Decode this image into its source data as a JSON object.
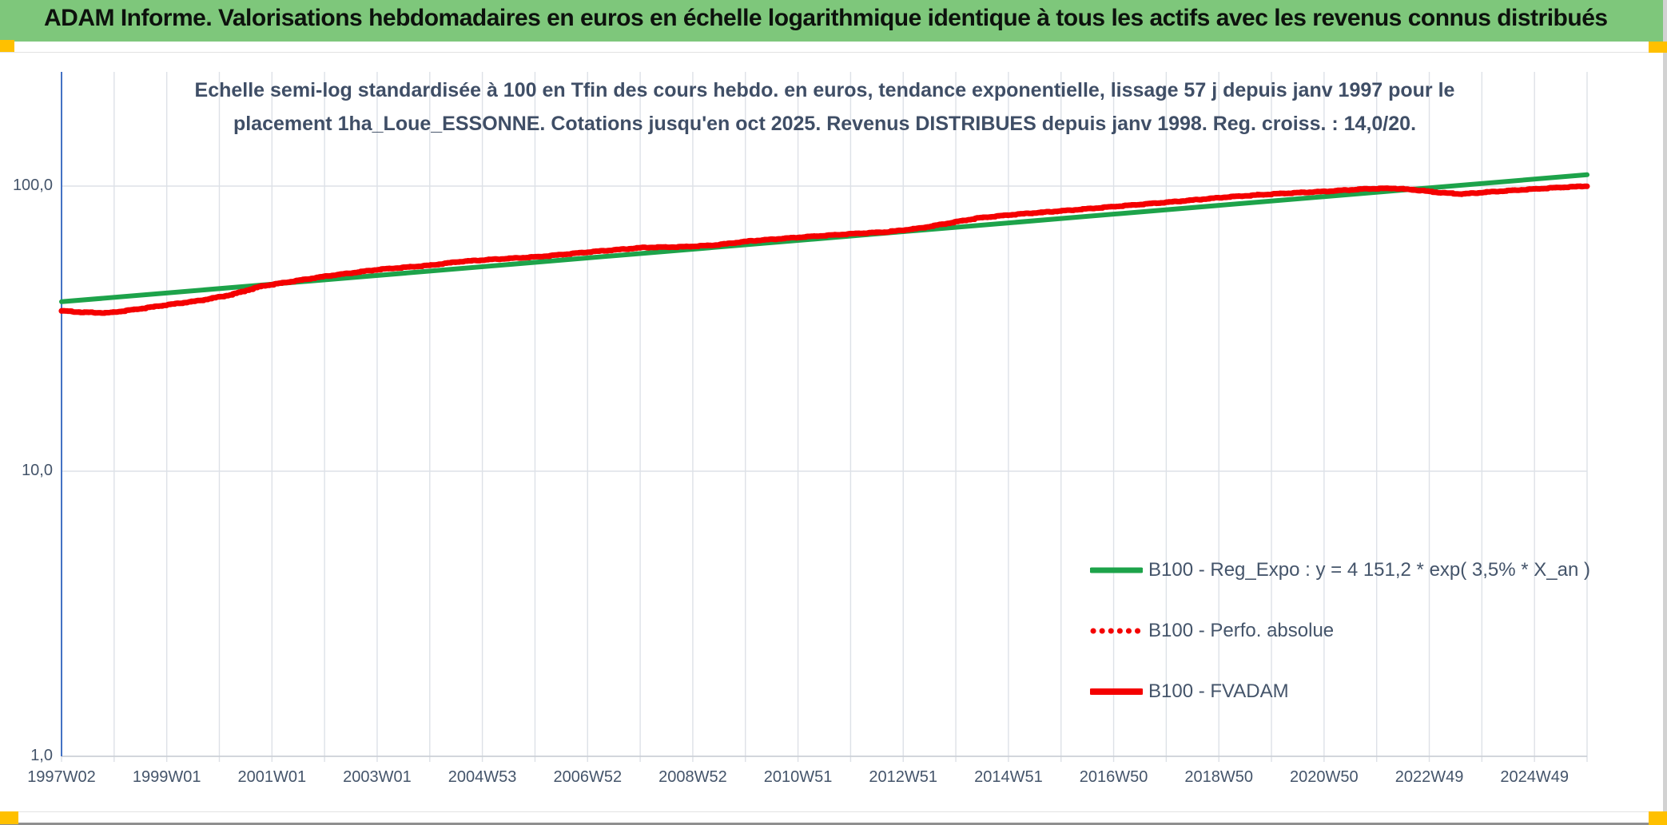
{
  "header": {
    "title": "ADAM Informe. Valorisations hebdomadaires en euros en échelle logarithmique identique à tous les actifs avec les revenus connus distribués",
    "bar_color": "#7EC77B",
    "corner_color": "#FFC000"
  },
  "chart": {
    "title_line1": "Echelle semi-log standardisée à 100 en Tfin des cours hebdo. en euros, tendance exponentielle, lissage 57 j depuis janv 1997 pour le",
    "title_line2": "placement 1ha_Loue_ESSONNE. Cotations jusqu'en oct 2025. Revenus DISTRIBUES depuis janv 1998. Reg. croiss. : 14,0/20.",
    "colors": {
      "regression_green": "#1DA34A",
      "series_red": "#F40000",
      "gridline": "#DDE1E7",
      "axis_gray": "#C9CDD4",
      "axis_blue": "#4472C4",
      "text": "#44546A"
    }
  },
  "chart_data": {
    "type": "line",
    "title": "Echelle semi-log standardisée à 100 en Tfin des cours hebdo. en euros, tendance exponentielle, lissage 57 j depuis janv 1997 pour le placement 1ha_Loue_ESSONNE. Cotations jusqu'en oct 2025. Revenus DISTRIBUES depuis janv 1998. Reg. croiss. : 14,0/20.",
    "y_axis": {
      "scale": "log",
      "tick_values": [
        100,
        10,
        1
      ],
      "tick_labels": [
        "100,0",
        "10,0",
        "1,0"
      ],
      "range": [
        1,
        250
      ]
    },
    "x_axis": {
      "tick_labels": [
        "1997W02",
        "1999W01",
        "2001W01",
        "2003W01",
        "2004W53",
        "2006W52",
        "2008W52",
        "2010W51",
        "2012W51",
        "2014W51",
        "2016W50",
        "2018W50",
        "2020W50",
        "2022W49",
        "2024W49"
      ],
      "start_year": 1997.03,
      "end_year": 2025.77,
      "gridline_interval_years": 1,
      "label_interval_years": 2
    },
    "legend_position": "inside-right-bottom",
    "grid": true,
    "series": [
      {
        "name": "B100 - Reg_Expo : y = 4 151,2 * exp( 3,5% *  X_an )",
        "style": "solid",
        "color": "#1DA34A",
        "model": "exponential",
        "points": [
          [
            1997.03,
            39.3
          ],
          [
            2025.77,
            109.6
          ]
        ]
      },
      {
        "name": "B100 - Perfo. absolue",
        "style": "dotted",
        "color": "#F40000",
        "note": "coincides with B100 - FVADAM (revenues distributed)",
        "keypoints_ref": "B100 - FVADAM"
      },
      {
        "name": "B100 - FVADAM",
        "style": "solid",
        "color": "#F40000",
        "keypoints": [
          [
            1997.03,
            36.5
          ],
          [
            1997.4,
            36.1
          ],
          [
            1997.9,
            35.9
          ],
          [
            1998.4,
            36.9
          ],
          [
            1999.0,
            38.3
          ],
          [
            1999.6,
            39.6
          ],
          [
            2000.2,
            41.5
          ],
          [
            2000.8,
            44.6
          ],
          [
            2001.4,
            46.4
          ],
          [
            2002.0,
            48.3
          ],
          [
            2003.0,
            51.0
          ],
          [
            2004.0,
            52.8
          ],
          [
            2004.5,
            54.3
          ],
          [
            2005.2,
            55.4
          ],
          [
            2006.0,
            56.5
          ],
          [
            2007.0,
            58.8
          ],
          [
            2008.0,
            60.9
          ],
          [
            2008.7,
            61.2
          ],
          [
            2009.3,
            62.0
          ],
          [
            2010.0,
            64.2
          ],
          [
            2011.0,
            66.3
          ],
          [
            2012.0,
            68.2
          ],
          [
            2012.6,
            69.1
          ],
          [
            2013.2,
            71.2
          ],
          [
            2013.8,
            74.5
          ],
          [
            2014.3,
            77.3
          ],
          [
            2015.0,
            79.6
          ],
          [
            2016.0,
            82.2
          ],
          [
            2017.0,
            85.2
          ],
          [
            2018.0,
            88.2
          ],
          [
            2019.0,
            91.6
          ],
          [
            2020.0,
            94.2
          ],
          [
            2020.8,
            95.7
          ],
          [
            2021.6,
            97.8
          ],
          [
            2022.1,
            98.2
          ],
          [
            2022.5,
            97.0
          ],
          [
            2023.0,
            94.8
          ],
          [
            2023.4,
            93.8
          ],
          [
            2024.0,
            95.6
          ],
          [
            2024.6,
            97.2
          ],
          [
            2025.2,
            98.8
          ],
          [
            2025.77,
            100.0
          ]
        ]
      }
    ]
  },
  "legend": {
    "items": [
      {
        "label": "B100 - Reg_Expo : y = 4 151,2 * exp( 3,5% *  X_an )",
        "sample": "green-solid-line"
      },
      {
        "label": "B100 - Perfo. absolue",
        "sample": "red-dotted-line"
      },
      {
        "label": "B100 - FVADAM",
        "sample": "red-solid-line"
      }
    ]
  }
}
